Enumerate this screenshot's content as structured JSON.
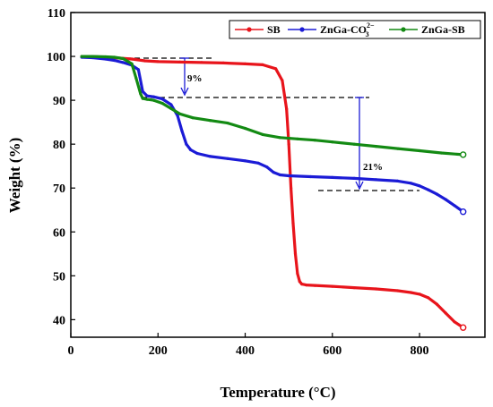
{
  "chart_data": {
    "type": "line",
    "xlabel": "Temperature (°C)",
    "ylabel": "Weight (%)",
    "xlim": [
      0,
      950
    ],
    "ylim": [
      36,
      110
    ],
    "xticks": [
      0,
      200,
      400,
      600,
      800
    ],
    "yticks": [
      40,
      50,
      60,
      70,
      80,
      90,
      100,
      110
    ],
    "grid": false,
    "legend_position": "top-right",
    "series": [
      {
        "name": "SB",
        "color": "#e8141b",
        "x": [
          25,
          60,
          100,
          140,
          170,
          200,
          250,
          300,
          350,
          400,
          440,
          470,
          485,
          495,
          500,
          505,
          510,
          515,
          520,
          525,
          530,
          540,
          560,
          600,
          650,
          700,
          750,
          780,
          800,
          820,
          840,
          860,
          880,
          900
        ],
        "y": [
          100,
          99.9,
          99.7,
          99.4,
          99.0,
          98.8,
          98.7,
          98.6,
          98.5,
          98.3,
          98.1,
          97.2,
          94.5,
          88,
          80,
          70,
          62,
          55,
          50.5,
          48.7,
          48.1,
          47.9,
          47.8,
          47.6,
          47.3,
          47.0,
          46.6,
          46.2,
          45.8,
          45.0,
          43.5,
          41.5,
          39.5,
          38.2
        ]
      },
      {
        "name": "ZnGa-CO",
        "color": "#1b1bd6",
        "x": [
          25,
          50,
          80,
          100,
          120,
          140,
          155,
          165,
          175,
          190,
          210,
          230,
          245,
          255,
          265,
          275,
          290,
          320,
          360,
          400,
          430,
          450,
          465,
          480,
          500,
          550,
          600,
          650,
          700,
          750,
          780,
          800,
          820,
          840,
          860,
          880,
          900
        ],
        "y": [
          99.8,
          99.7,
          99.4,
          99.1,
          98.6,
          98.0,
          97.0,
          92,
          91.0,
          90.8,
          90.3,
          89.0,
          86.5,
          83,
          80,
          78.7,
          77.9,
          77.2,
          76.7,
          76.2,
          75.7,
          74.8,
          73.6,
          73.0,
          72.8,
          72.6,
          72.4,
          72.2,
          71.9,
          71.6,
          71.1,
          70.5,
          69.6,
          68.6,
          67.4,
          66.0,
          64.6
        ]
      },
      {
        "name": "ZnGa-SB",
        "color": "#138a13",
        "x": [
          25,
          50,
          80,
          100,
          120,
          140,
          150,
          160,
          165,
          175,
          190,
          210,
          230,
          250,
          280,
          320,
          360,
          400,
          440,
          480,
          520,
          560,
          600,
          650,
          700,
          750,
          800,
          850,
          900
        ],
        "y": [
          100,
          100,
          99.9,
          99.8,
          99.5,
          98.3,
          95,
          91.5,
          90.4,
          90.2,
          90.0,
          89.3,
          88.1,
          86.9,
          86.0,
          85.4,
          84.8,
          83.6,
          82.2,
          81.5,
          81.2,
          80.9,
          80.5,
          80.0,
          79.5,
          79.0,
          78.5,
          78.0,
          77.6
        ]
      }
    ],
    "annotations": [
      {
        "text": "9%",
        "x": 258,
        "y": 96
      },
      {
        "text": "21%",
        "x": 660,
        "y": 80
      }
    ]
  },
  "legend": {
    "sb": "SB",
    "co3_base": "ZnGa-CO",
    "co3_sub": "3",
    "co3_sup": "2−",
    "znga_sb": "ZnGa-SB"
  }
}
